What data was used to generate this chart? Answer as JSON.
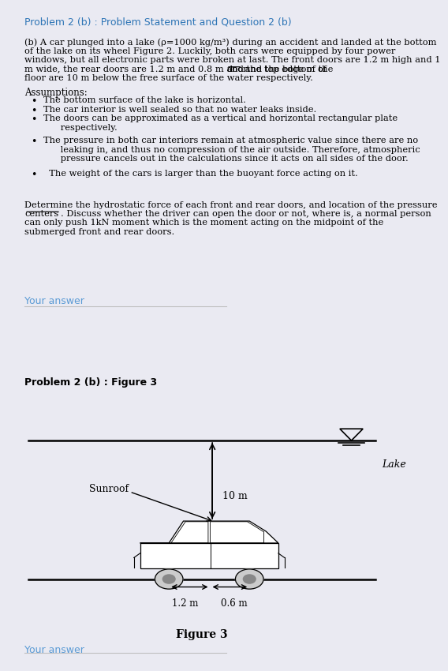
{
  "title1": "Problem 2 (b) : Problem Statement and Question 2 (b)",
  "title2": "Problem 2 (b) : Figure 3",
  "title1_color": "#2e75b6",
  "bg_color": "#eaeaf2",
  "panel_bg": "#ffffff",
  "your_answer_color": "#5b9bd5",
  "your_answer_text": "Your answer",
  "figure_label": "Figure 3",
  "lake_label": "Lake",
  "sunroof_label": "Sunroof",
  "dim_10m": "10 m",
  "dim_12m": "1.2 m",
  "dim_06m": "0.6 m",
  "line1": "(b) A car plunged into a lake (ρ=1000 kg/m³) during an accident and landed at the bottom",
  "line2": "of the lake on its wheel Figure 2. Luckily, both cars were equipped by four power",
  "line3": "windows, but all electronic parts were broken at last. The front doors are 1.2 m high and 1",
  "line4a": "m wide, the rear doors are 1.2 m and 0.8 m and the top edge of the ",
  "line4b": "door",
  "line4c": " and the bottom of",
  "line5": "floor are 10 m below the free surface of the water respectively.",
  "assump_title": "Assumptions:",
  "assumptions": [
    "The bottom surface of the lake is horizontal.",
    "The car interior is well sealed so that no water leaks inside.",
    "The doors can be approximated as a vertical and horizontal rectangular plate\n      respectively.",
    "The pressure in both car interiors remain at atmospheric value since there are no\n      leaking in, and thus no compression of the air outside. Therefore, atmospheric\n      pressure cancels out in the calculations since it acts on all sides of the door.",
    "  The weight of the cars is larger than the buoyant force acting on it."
  ],
  "qline1": "Determine the hydrostatic force of each front and rear doors, and location of the pressure",
  "qline2a": "centers",
  "qline2b": ". Discuss whether the driver can open the door or not, where is, a normal person",
  "qline3": "can only push 1kN moment which is the moment acting on the midpoint of the",
  "qline4": "submerged front and rear doors."
}
